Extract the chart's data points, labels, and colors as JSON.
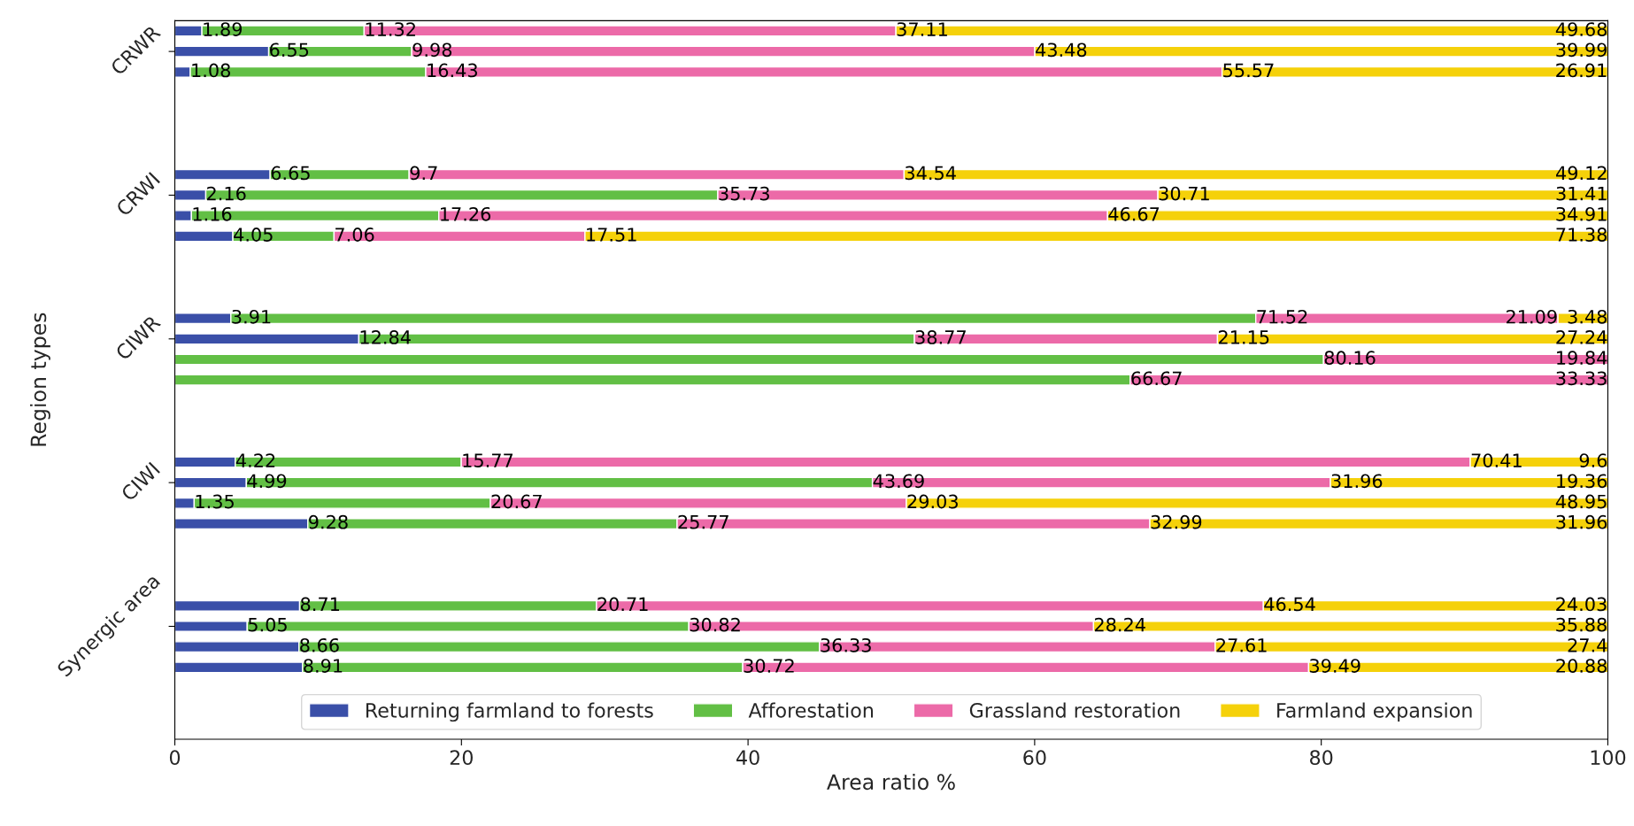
{
  "chart_data": {
    "type": "bar",
    "orientation": "horizontal",
    "stacked": true,
    "data_labels": true,
    "xlabel": "Area ratio %",
    "ylabel": "Region types",
    "categories": [
      null,
      "CRWR",
      null,
      null,
      null,
      null,
      null,
      null,
      "CRWI",
      null,
      null,
      null,
      null,
      null,
      null,
      "CIWR",
      null,
      null,
      null,
      null,
      null,
      null,
      "CIWI",
      null,
      null,
      null,
      null,
      null,
      null,
      "Synergic area",
      null,
      null,
      null,
      null,
      null
    ],
    "series": [
      {
        "name": "Returning farmland to forests",
        "color": "#3a4fa8",
        "values": [
          1.89,
          6.55,
          1.08,
          null,
          null,
          null,
          null,
          6.65,
          2.16,
          1.16,
          4.05,
          null,
          null,
          null,
          3.91,
          12.84,
          null,
          null,
          null,
          null,
          null,
          4.22,
          4.99,
          1.35,
          9.28,
          null,
          null,
          null,
          8.71,
          5.05,
          8.66,
          8.91,
          null,
          null,
          null
        ]
      },
      {
        "name": "Afforestation",
        "color": "#62bf45",
        "values": [
          11.32,
          9.98,
          16.43,
          null,
          null,
          null,
          null,
          9.7,
          35.73,
          17.26,
          7.06,
          null,
          null,
          null,
          71.52,
          38.77,
          80.16,
          66.67,
          null,
          null,
          null,
          15.77,
          43.69,
          20.67,
          25.77,
          null,
          null,
          null,
          20.71,
          30.82,
          36.33,
          30.72,
          null,
          null,
          null
        ]
      },
      {
        "name": "Grassland restoration",
        "color": "#ec6aa8",
        "values": [
          37.11,
          43.48,
          55.57,
          null,
          null,
          null,
          null,
          34.54,
          30.71,
          46.67,
          17.51,
          null,
          null,
          null,
          21.09,
          21.15,
          19.84,
          33.33,
          null,
          null,
          null,
          70.41,
          31.96,
          29.03,
          32.99,
          null,
          null,
          null,
          46.54,
          28.24,
          27.61,
          39.49,
          null,
          null,
          null
        ]
      },
      {
        "name": "Farmland expansion",
        "color": "#f5d10a",
        "values": [
          49.68,
          39.99,
          26.91,
          null,
          null,
          null,
          null,
          49.12,
          31.41,
          34.91,
          71.38,
          null,
          null,
          null,
          3.48,
          27.24,
          null,
          null,
          null,
          null,
          null,
          9.6,
          19.36,
          48.95,
          31.96,
          null,
          null,
          null,
          24.03,
          35.88,
          27.4,
          20.88,
          null,
          null,
          null
        ]
      }
    ],
    "xlim": [
      0,
      100
    ],
    "xticks": [
      0,
      20,
      40,
      60,
      80,
      100
    ],
    "grid": false,
    "legend": "bottom"
  }
}
